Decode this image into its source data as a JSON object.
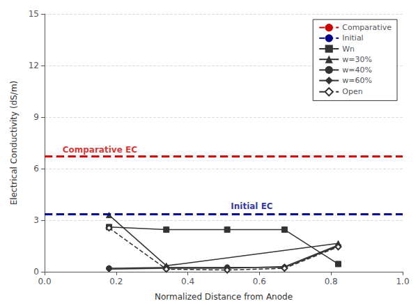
{
  "chart_data": {
    "type": "line",
    "xlabel": "Normalized Distance from Anode",
    "ylabel": "Electrical Conductivity (dS/m)",
    "xlim": [
      0,
      1.0
    ],
    "ylim": [
      0,
      15
    ],
    "xticks": [
      {
        "value": 0,
        "label": "0.0"
      },
      0.2,
      0.4,
      0.6,
      0.8,
      {
        "value": 1.0,
        "label": "1.0"
      }
    ],
    "yticks": [
      0,
      3,
      6,
      9,
      12,
      15
    ],
    "grid": "y",
    "legend": "upper right",
    "series": [
      {
        "name": "Comparative",
        "type": "hline",
        "values": [
          6.7
        ],
        "color": "#cc0000",
        "line_style": "dashed"
      },
      {
        "name": "Initial",
        "type": "hline",
        "values": [
          3.35
        ],
        "color": "#00008b",
        "line_style": "dashed"
      },
      {
        "name": "Wn",
        "type": "line",
        "x": [
          0.18,
          0.34,
          0.51,
          0.67,
          0.82
        ],
        "values": [
          2.6,
          2.45,
          2.45,
          2.45,
          0.45
        ],
        "color": "#333333",
        "marker": "square",
        "line_style": "solid"
      },
      {
        "name": "w=30%",
        "type": "line",
        "x": [
          0.18,
          0.34,
          0.82
        ],
        "values": [
          3.3,
          0.35,
          1.65
        ],
        "color": "#333333",
        "marker": "triangle",
        "line_style": "solid"
      },
      {
        "name": "w=40%",
        "type": "line",
        "x": [
          0.18,
          0.34,
          0.51,
          0.67,
          0.82
        ],
        "values": [
          0.2,
          0.25,
          0.25,
          0.25,
          1.5
        ],
        "color": "#333333",
        "marker": "circle",
        "line_style": "solid"
      },
      {
        "name": "w=60%",
        "type": "line",
        "x": [
          0.18,
          0.34,
          0.51,
          0.67,
          0.82
        ],
        "values": [
          0.15,
          0.2,
          0.2,
          0.3,
          1.55
        ],
        "color": "#333333",
        "marker": "diamond",
        "line_style": "solid"
      },
      {
        "name": "Open",
        "type": "line",
        "x": [
          0.18,
          0.34,
          0.51,
          0.67,
          0.82
        ],
        "values": [
          2.55,
          0.15,
          0.1,
          0.2,
          1.45
        ],
        "color": "#333333",
        "marker": "open_diamond",
        "line_style": "dashed"
      }
    ],
    "annotations": [
      {
        "text": "Comparative EC",
        "x": 0.05,
        "y": 7.1,
        "color": "#cc0000"
      },
      {
        "text": "Initial EC",
        "x": 0.52,
        "y": 3.8,
        "color": "#00008b"
      }
    ]
  }
}
